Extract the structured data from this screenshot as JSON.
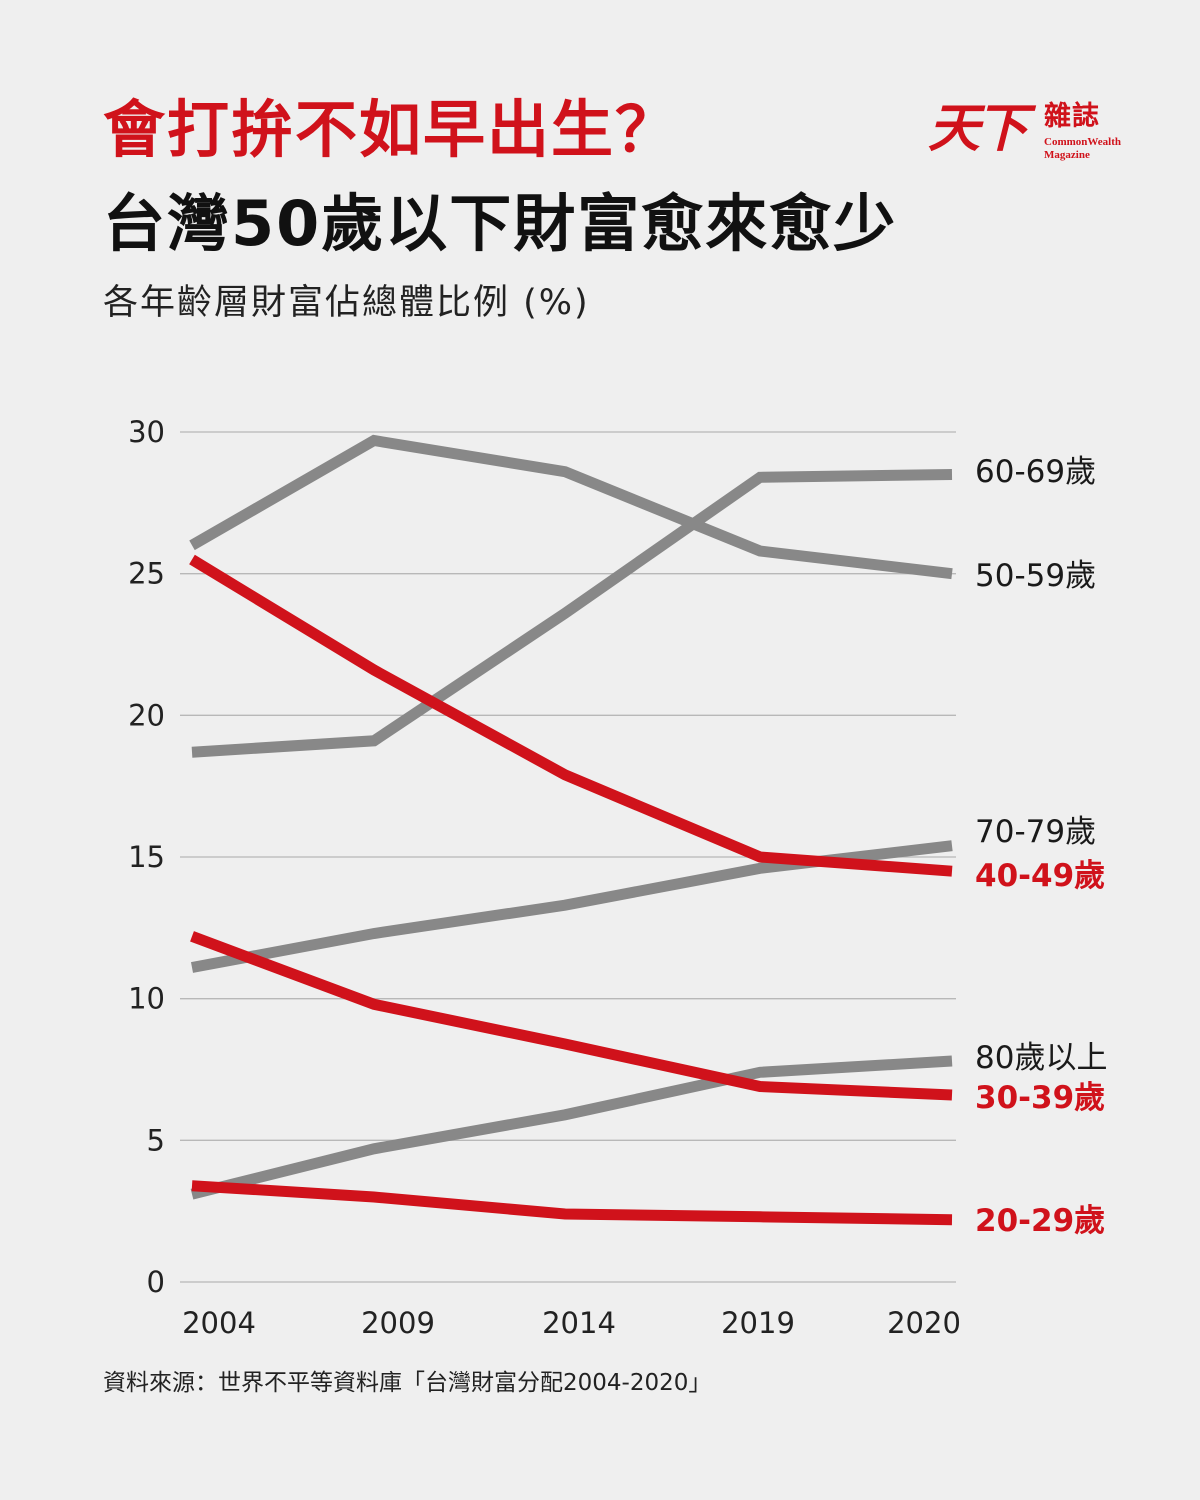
{
  "header": {
    "title_line1": "會打拚不如早出生？",
    "title_line2": "台灣50歲以下財富愈來愈少",
    "subtitle": "各年齡層財富佔總體比例 (%)"
  },
  "logo": {
    "mark": "天下",
    "cn": "雜誌",
    "en_line1": "CommonWealth",
    "en_line2": "Magazine"
  },
  "source": "資料來源：世界不平等資料庫「台灣財富分配2004-2020」",
  "colors": {
    "red": "#d0121b",
    "gray": "#888888",
    "label_dark": "#1a1a1a"
  },
  "chart_data": {
    "type": "line",
    "title": "各年齡層財富佔總體比例 (%)",
    "xlabel": "",
    "ylabel": "",
    "categories": [
      "2004",
      "2009",
      "2014",
      "2019",
      "2020"
    ],
    "yticks": [
      0,
      5,
      10,
      15,
      20,
      25,
      30
    ],
    "ylim": [
      0,
      30
    ],
    "grid": true,
    "series": [
      {
        "name": "60-69歲",
        "color": "gray",
        "values": [
          18.7,
          19.1,
          23.6,
          28.4,
          28.5
        ]
      },
      {
        "name": "50-59歲",
        "color": "gray",
        "values": [
          26.0,
          29.7,
          28.6,
          25.8,
          25.0
        ]
      },
      {
        "name": "70-79歲",
        "color": "gray",
        "values": [
          11.1,
          12.3,
          13.3,
          14.6,
          15.4
        ]
      },
      {
        "name": "40-49歲",
        "color": "red",
        "values": [
          25.5,
          21.6,
          17.9,
          15.0,
          14.5
        ]
      },
      {
        "name": "80歲以上",
        "color": "gray",
        "values": [
          3.1,
          4.7,
          5.9,
          7.4,
          7.8
        ]
      },
      {
        "name": "30-39歲",
        "color": "red",
        "values": [
          12.2,
          9.8,
          8.4,
          6.9,
          6.6
        ]
      },
      {
        "name": "20-29歲",
        "color": "red",
        "values": [
          3.4,
          3.0,
          2.4,
          2.3,
          2.2
        ]
      }
    ]
  }
}
